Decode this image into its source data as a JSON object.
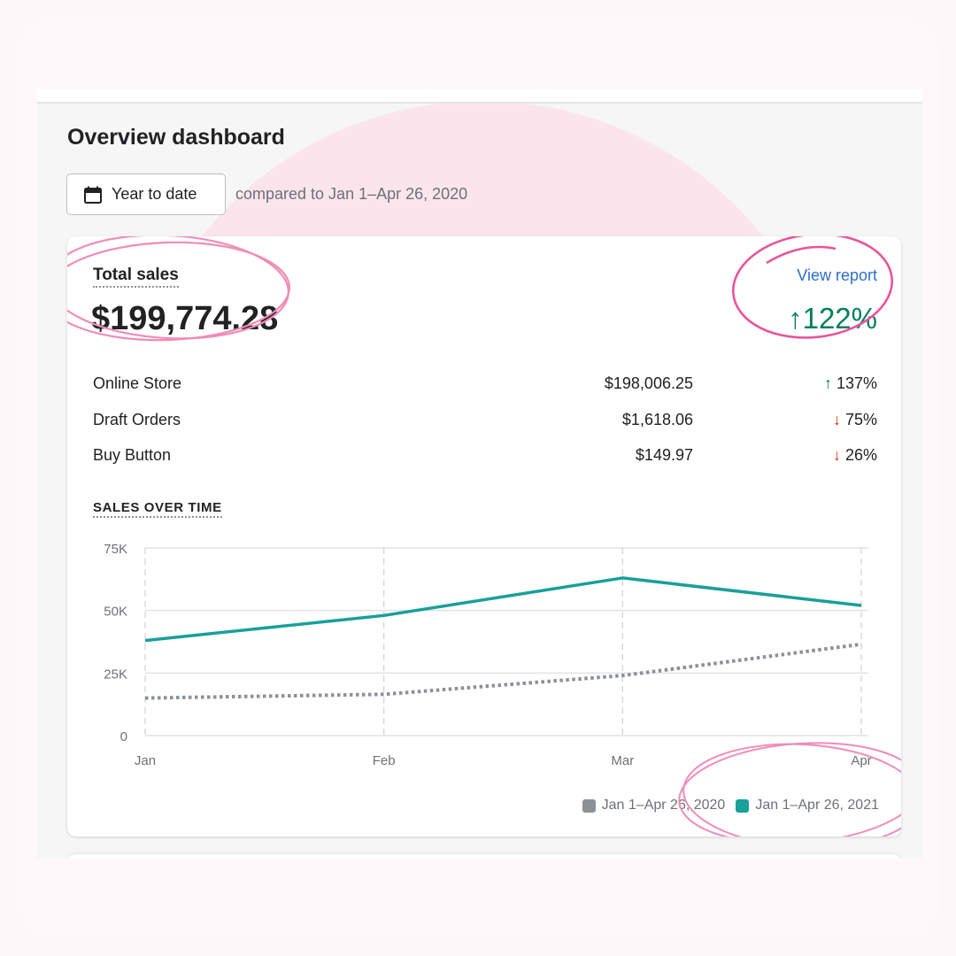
{
  "page": {
    "title": "Overview dashboard",
    "date_button": "Year to date",
    "compare_text": "compared to Jan 1–Apr 26, 2020"
  },
  "total_sales": {
    "label": "Total sales",
    "value": "$199,774.28",
    "view_report": "View report",
    "change": "122%",
    "change_direction": "up"
  },
  "channels": [
    {
      "name": "Online Store",
      "amount": "$198,006.25",
      "change": "137%",
      "direction": "up"
    },
    {
      "name": "Draft Orders",
      "amount": "$1,618.06",
      "change": "75%",
      "direction": "down"
    },
    {
      "name": "Buy Button",
      "amount": "$149.97",
      "change": "26%",
      "direction": "down"
    }
  ],
  "sales_over_time": {
    "label": "SALES OVER TIME"
  },
  "chart_data": {
    "type": "line",
    "categories": [
      "Jan",
      "Feb",
      "Mar",
      "Apr"
    ],
    "y_ticks": [
      "0",
      "25K",
      "50K",
      "75K"
    ],
    "ylim": [
      0,
      75000
    ],
    "grid": true,
    "legend_position": "bottom-right",
    "series": [
      {
        "name": "Jan 1–Apr 26, 2020",
        "values": [
          15000,
          16500,
          24000,
          36500
        ],
        "color": "#8c9196",
        "style": "dotted"
      },
      {
        "name": "Jan 1–Apr 26, 2021",
        "values": [
          38000,
          48000,
          63000,
          52000
        ],
        "color": "#18a09a",
        "style": "solid"
      }
    ]
  },
  "colors": {
    "accent_teal": "#18a09a",
    "comparison_gray": "#8c9196",
    "positive": "#007f5f",
    "negative": "#d72c0d",
    "link": "#2c6ecb",
    "annotation_pink": "#e8549a"
  },
  "icons": {
    "date_button": "calendar-icon",
    "up": "arrow-up-icon",
    "down": "arrow-down-icon"
  }
}
